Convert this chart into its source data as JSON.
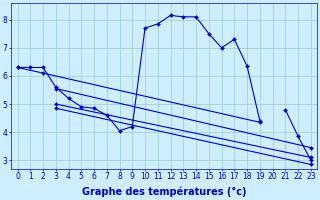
{
  "bg_color": "#cceeff",
  "grid_color": "#99cccc",
  "line_color": "#0000cc",
  "line_width": 0.8,
  "marker": "D",
  "marker_size": 2.0,
  "xlabel": "Graphe des températures (°c)",
  "xlabel_fontsize": 7,
  "tick_fontsize": 5.5,
  "xlim": [
    -0.5,
    23.5
  ],
  "ylim": [
    2.7,
    8.6
  ],
  "yticks": [
    3,
    4,
    5,
    6,
    7,
    8
  ],
  "xticks": [
    0,
    1,
    2,
    3,
    4,
    5,
    6,
    7,
    8,
    9,
    10,
    11,
    12,
    13,
    14,
    15,
    16,
    17,
    18,
    19,
    20,
    21,
    22,
    23
  ],
  "curve_main_x": [
    0,
    1,
    2,
    3,
    4,
    5,
    6,
    7,
    8,
    9,
    10,
    11,
    12,
    13,
    14,
    15,
    16,
    17,
    18,
    19,
    20,
    21,
    22,
    23
  ],
  "curve_main_y": [
    6.3,
    6.3,
    6.3,
    5.6,
    5.2,
    4.9,
    4.85,
    4.6,
    4.05,
    4.2,
    7.7,
    7.85,
    8.15,
    8.1,
    8.1,
    7.5,
    7.0,
    7.3,
    6.35,
    4.4,
    null,
    4.8,
    3.85,
    3.0
  ],
  "curve2_x": [
    0,
    2,
    19
  ],
  "curve2_y": [
    6.3,
    6.1,
    4.35
  ],
  "curve3_x": [
    3,
    23
  ],
  "curve3_y": [
    5.55,
    3.45
  ],
  "curve4_x": [
    3,
    23
  ],
  "curve4_y": [
    5.0,
    3.1
  ],
  "curve5_x": [
    3,
    23
  ],
  "curve5_y": [
    4.85,
    2.85
  ]
}
